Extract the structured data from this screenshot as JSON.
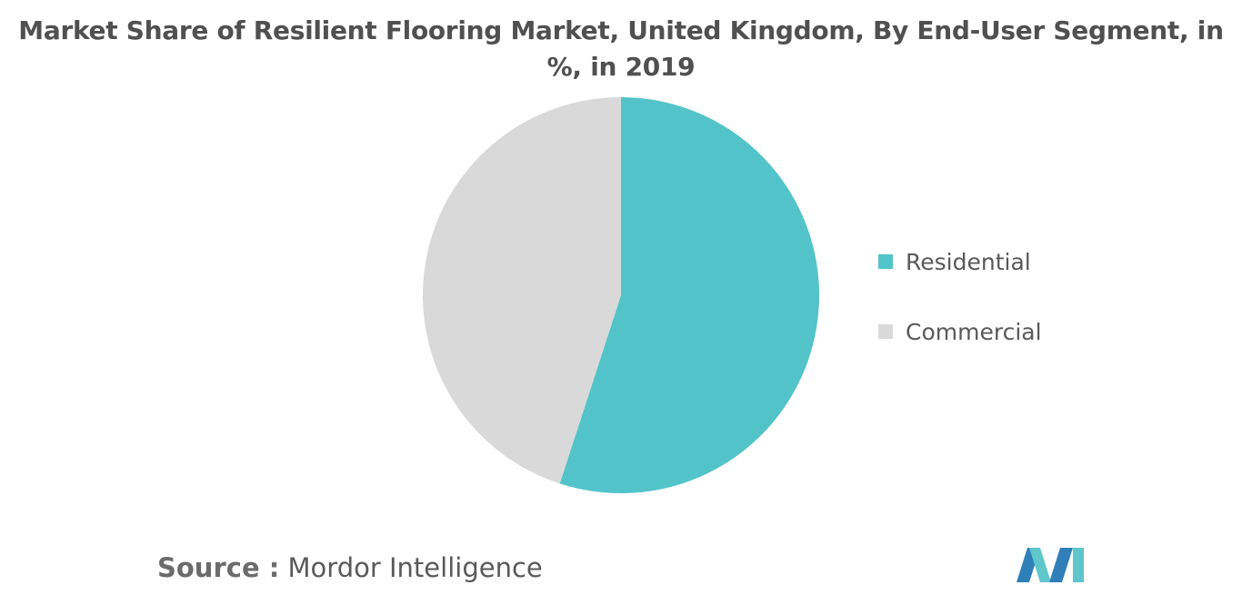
{
  "chart_data": {
    "type": "pie",
    "title": "Market Share of Resilient Flooring Market, United Kingdom, By End-User Segment, in %, in 2019",
    "slices": [
      {
        "label": "Residential",
        "value": 55,
        "color": "#52c4c9"
      },
      {
        "label": "Commercial",
        "value": 45,
        "color": "#d9d9d9"
      }
    ],
    "legend_position": "right"
  },
  "source": {
    "key": "Source :",
    "value": "Mordor Intelligence"
  },
  "logo": {
    "name": "mordor-intelligence-logo",
    "colors": [
      "#2f7fb8",
      "#5fc6cc"
    ]
  }
}
